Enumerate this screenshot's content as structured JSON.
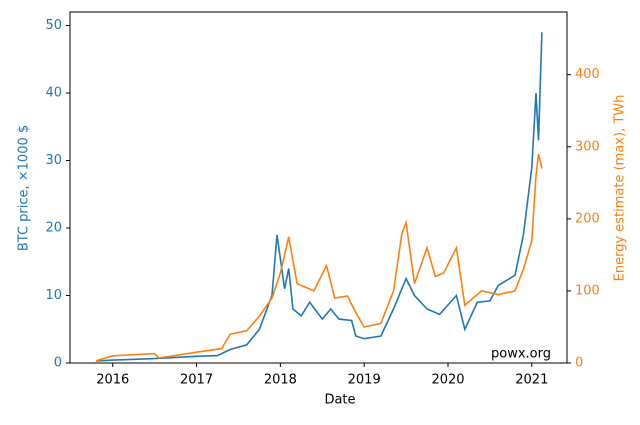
{
  "chart_data": {
    "type": "line",
    "xlabel": "Date",
    "ylabel": "BTC price, ×1000 $",
    "y2label": "Energy estimate (max), TWh",
    "annotation": "powx.org",
    "xlim": [
      2015.49,
      2021.42
    ],
    "xticks": [
      2016,
      2017,
      2018,
      2019,
      2020,
      2021
    ],
    "ylim": [
      0,
      52
    ],
    "yticks": [
      0,
      10,
      20,
      30,
      40,
      50
    ],
    "y2lim": [
      0,
      487
    ],
    "y2ticks": [
      0,
      100,
      200,
      300,
      400
    ],
    "series": [
      {
        "name": "BTC price",
        "color": "#1f77b4",
        "x": [
          2015.8,
          2016.0,
          2016.5,
          2017.0,
          2017.25,
          2017.4,
          2017.6,
          2017.75,
          2017.9,
          2017.96,
          2018.05,
          2018.1,
          2018.15,
          2018.25,
          2018.35,
          2018.5,
          2018.6,
          2018.7,
          2018.85,
          2018.9,
          2019.0,
          2019.2,
          2019.35,
          2019.5,
          2019.6,
          2019.75,
          2019.9,
          2020.1,
          2020.2,
          2020.35,
          2020.5,
          2020.6,
          2020.8,
          2020.9,
          2021.0,
          2021.05,
          2021.08,
          2021.12
        ],
        "values": [
          0.3,
          0.43,
          0.65,
          1.0,
          1.1,
          2.0,
          2.7,
          5,
          10,
          19,
          11,
          14,
          8,
          7,
          9,
          6.5,
          8,
          6.5,
          6.3,
          4,
          3.6,
          4,
          8,
          12.5,
          10,
          8,
          7.2,
          10,
          5,
          9,
          9.2,
          11.5,
          13,
          19,
          29,
          40,
          33,
          49
        ]
      },
      {
        "name": "Energy estimate",
        "color": "#ff7f0e",
        "axis": "y2",
        "x": [
          2015.8,
          2016.0,
          2016.5,
          2016.55,
          2017.0,
          2017.3,
          2017.4,
          2017.6,
          2017.75,
          2017.9,
          2018.0,
          2018.1,
          2018.2,
          2018.4,
          2018.55,
          2018.65,
          2018.8,
          2018.9,
          2019.0,
          2019.2,
          2019.35,
          2019.45,
          2019.5,
          2019.6,
          2019.75,
          2019.85,
          2019.95,
          2020.1,
          2020.2,
          2020.4,
          2020.6,
          2020.8,
          2020.9,
          2021.0,
          2021.05,
          2021.08,
          2021.12
        ],
        "values": [
          3,
          10,
          13,
          7,
          15,
          20,
          40,
          45,
          65,
          90,
          125,
          175,
          110,
          100,
          135,
          90,
          93,
          70,
          50,
          55,
          100,
          180,
          195,
          110,
          160,
          120,
          125,
          160,
          80,
          100,
          95,
          100,
          130,
          170,
          260,
          290,
          270
        ]
      }
    ]
  }
}
